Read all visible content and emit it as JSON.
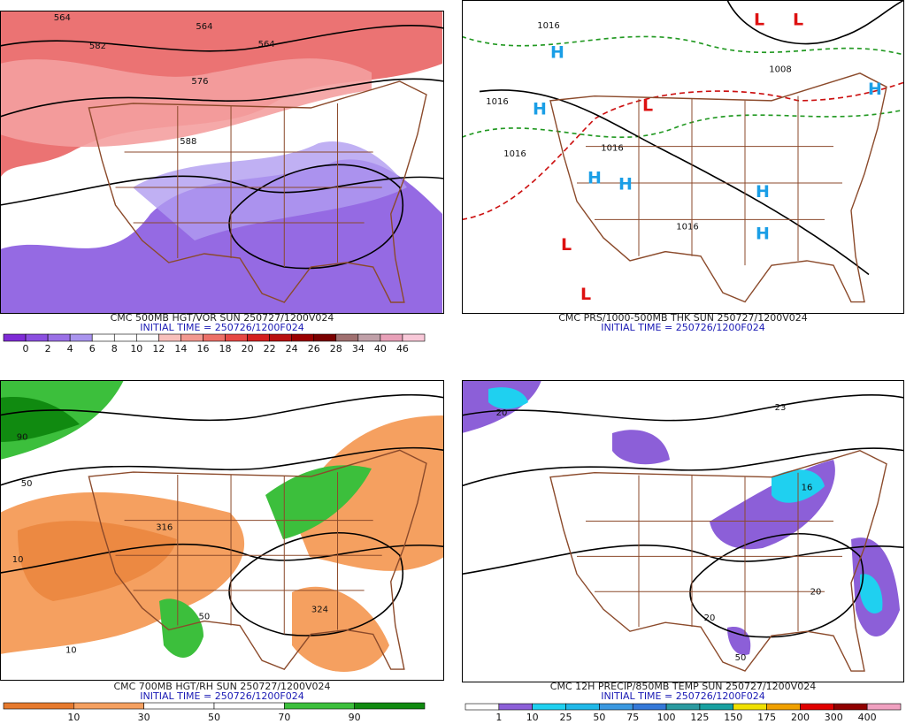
{
  "panels": [
    {
      "caption": "CMC 500MB HGT/VOR SUN 250727/1200V024",
      "initial_time": "INITIAL TIME = 250726/1200F024",
      "colorbar": {
        "labels": [
          "0",
          "2",
          "4",
          "6",
          "8",
          "10",
          "12",
          "14",
          "16",
          "18",
          "20",
          "22",
          "24",
          "26",
          "28",
          "34",
          "40",
          "46"
        ],
        "colors": [
          "#7f2bd6",
          "#8b4fe0",
          "#9a70e6",
          "#a994ee",
          "#ffffff",
          "#ffffff",
          "#ffffff",
          "#f8c0bc",
          "#f29890",
          "#ec7068",
          "#e64844",
          "#d42020",
          "#b81010",
          "#9a0000",
          "#7a0000",
          "#a07070",
          "#c0a0a8",
          "#e8a0b8",
          "#f8c8d8"
        ]
      },
      "map_labels": [
        "564",
        "564",
        "576",
        "564",
        "588",
        "582"
      ]
    },
    {
      "caption": "CMC PRS/1000-500MB THK SUN 250727/1200V024",
      "initial_time": "INITIAL TIME = 250726/1200F024",
      "map_labels": [
        "H",
        "H",
        "H",
        "H",
        "H",
        "H",
        "H",
        "L",
        "L",
        "L",
        "L",
        "L",
        "1016",
        "1016",
        "1016",
        "1016",
        "1008",
        "1016"
      ]
    },
    {
      "caption": "CMC 700MB HGT/RH SUN 250727/1200V024",
      "initial_time": "INITIAL TIME = 250726/1200F024",
      "colorbar": {
        "labels": [
          "10",
          "30",
          "50",
          "70",
          "90"
        ],
        "colors": [
          "#e67a2e",
          "#f5a060",
          "#ffffff",
          "#ffffff",
          "#3cbf3c",
          "#108a10"
        ]
      },
      "map_labels": [
        "10",
        "50",
        "90",
        "50",
        "10",
        "316",
        "324"
      ]
    },
    {
      "caption": "CMC 12H PRECIP/850MB TEMP SUN 250727/1200V024",
      "initial_time": "INITIAL TIME = 250726/1200F024",
      "colorbar": {
        "labels": [
          "1",
          "10",
          "25",
          "50",
          "75",
          "100",
          "125",
          "150",
          "175",
          "200",
          "300",
          "400"
        ],
        "colors": [
          "#ffffff",
          "#8c5fd8",
          "#1fd0f0",
          "#20b8e8",
          "#3a98e0",
          "#3478d8",
          "#2a9aa0",
          "#18a0a0",
          "#f0e000",
          "#f0a000",
          "#e00000",
          "#900000",
          "#f0a0c0"
        ]
      },
      "map_labels": [
        "20",
        "20",
        "23",
        "16",
        "20",
        "50"
      ]
    }
  ]
}
